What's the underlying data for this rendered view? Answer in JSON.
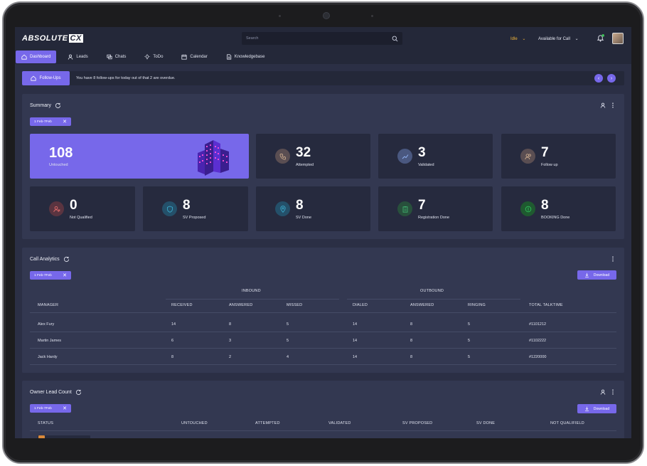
{
  "header": {
    "logo_main": "ABSOLUTE",
    "logo_accent": "CX",
    "search_placeholder": "Search",
    "status": "Idle",
    "availability": "Available for Call"
  },
  "nav": [
    {
      "label": "Dashboard",
      "icon": "home-icon",
      "active": true
    },
    {
      "label": "Leads",
      "icon": "user-icon"
    },
    {
      "label": "Chats",
      "icon": "chat-icon"
    },
    {
      "label": "ToDo",
      "icon": "bulb-icon"
    },
    {
      "label": "Calendar",
      "icon": "calendar-icon"
    },
    {
      "label": "Knowledgebase",
      "icon": "document-icon"
    }
  ],
  "followups": {
    "button": "Follow-Ups",
    "message": "You have 8 follow-ups for today out of that 2 are overdue."
  },
  "summary": {
    "title": "Summary",
    "chip": "1 Feb-7Feb",
    "cards": [
      {
        "value": "108",
        "label": "Untouched"
      },
      {
        "value": "32",
        "label": "Attempted",
        "color": "#c9a98d"
      },
      {
        "value": "3",
        "label": "Validated",
        "color": "#6f8fd8"
      },
      {
        "value": "7",
        "label": "Follow up",
        "color": "#c9a98d"
      },
      {
        "value": "0",
        "label": "Not Qualified",
        "color": "#d05757"
      },
      {
        "value": "8",
        "label": "SV Proposed",
        "color": "#3aa7c9"
      },
      {
        "value": "8",
        "label": "SV Done",
        "color": "#3aa7c9"
      },
      {
        "value": "7",
        "label": "Registration Done",
        "color": "#3fae6d"
      },
      {
        "value": "8",
        "label": "BOOKING Done",
        "color": "#2fbf5a"
      }
    ]
  },
  "call_analytics": {
    "title": "Call Analytics",
    "chip": "1 Feb-7Feb",
    "download": "Download",
    "group_inbound": "INBOUND",
    "group_outbound": "OUTBOUND",
    "columns": [
      "MANAGER",
      "RECEIVED",
      "ANSWERED",
      "MISSED",
      "DIALED",
      "ANSWERED",
      "RINGING",
      "TOTAL TALKTIME"
    ],
    "rows": [
      [
        "Alex Fury",
        "14",
        "8",
        "5",
        "14",
        "8",
        "5",
        "#1101212"
      ],
      [
        "Martin James",
        "6",
        "3",
        "5",
        "14",
        "8",
        "5",
        "#1102222"
      ],
      [
        "Jack Hardy",
        "8",
        "2",
        "4",
        "14",
        "8",
        "5",
        "#1220000"
      ]
    ]
  },
  "owner_lead": {
    "title": "Owner Lead Count",
    "chip": "1 Feb-7Feb",
    "download": "Download",
    "columns": [
      "STATUS",
      "UNTOUCHED",
      "ATTEMPTED",
      "VALIDATED",
      "SV PROPOSED",
      "SV DONE",
      "NOT QUALIFIELD"
    ]
  }
}
